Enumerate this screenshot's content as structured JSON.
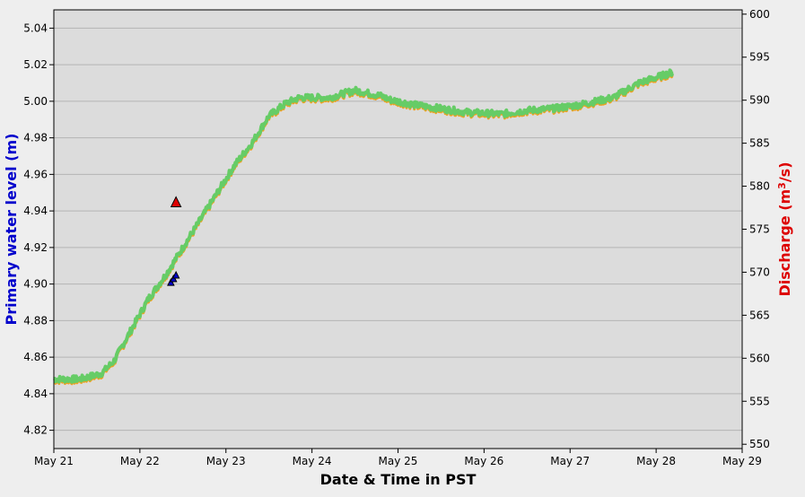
{
  "chart_data": {
    "type": "line",
    "xlabel": "Date & Time in PST",
    "ylabel_left": "Primary water level (m)",
    "ylabel_right_main": "Discharge (m",
    "ylabel_right_sup": "3",
    "ylabel_right_tail": "/s)",
    "ylim_left": [
      4.81,
      5.05
    ],
    "ylim_right": [
      549.5,
      600.5
    ],
    "xlim": [
      "May 21",
      "May 29"
    ],
    "x_ticks": [
      "May 21",
      "May 22",
      "May 23",
      "May 24",
      "May 25",
      "May 26",
      "May 27",
      "May 28",
      "May 29"
    ],
    "y_ticks_left": [
      "4.82",
      "4.84",
      "4.86",
      "4.88",
      "4.90",
      "4.92",
      "4.94",
      "4.96",
      "4.98",
      "5.00",
      "5.02",
      "5.04"
    ],
    "y_ticks_right": [
      "550",
      "555",
      "560",
      "565",
      "570",
      "575",
      "580",
      "585",
      "590",
      "595",
      "600"
    ],
    "grid": true,
    "colors": {
      "plot_bg": "#dcdcdc",
      "water_level": "#66cc66",
      "discharge": "#f0a020",
      "left_axis_title": "#0000cc",
      "right_axis_title": "#dd0000",
      "discharge_marker": "#dd0000",
      "level_marker": "#0000cc"
    },
    "series": [
      {
        "axis": "left",
        "day_offsets": [
          0.0,
          0.3,
          0.55,
          0.7,
          0.9,
          1.1,
          1.3,
          1.5,
          1.7,
          1.9,
          2.1,
          2.3,
          2.5,
          2.7,
          2.85,
          3.0,
          3.2,
          3.5,
          3.8,
          3.9,
          4.2,
          4.5,
          4.8,
          5.2,
          5.5,
          5.8,
          6.1,
          6.5,
          6.8,
          7.2
        ],
        "values": [
          4.848,
          4.848,
          4.851,
          4.858,
          4.875,
          4.892,
          4.905,
          4.92,
          4.935,
          4.95,
          4.965,
          4.977,
          4.992,
          4.999,
          5.002,
          5.002,
          5.002,
          5.006,
          5.003,
          5.001,
          4.998,
          4.996,
          4.994,
          4.993,
          4.995,
          4.996,
          4.998,
          5.002,
          5.01,
          5.016
        ]
      }
    ],
    "markers": [
      {
        "label": "discharge measurement",
        "axis": "left",
        "day_offset": 1.42,
        "value": 4.945,
        "color": "#dd0000"
      },
      {
        "label": "level measurement",
        "axis": "left",
        "day_offset": 1.36,
        "value": 4.901,
        "color": "#0000cc"
      },
      {
        "label": "level measurement",
        "axis": "left",
        "day_offset": 1.39,
        "value": 4.903,
        "color": "#0000cc"
      },
      {
        "label": "level measurement",
        "axis": "left",
        "day_offset": 1.42,
        "value": 4.905,
        "color": "#0000cc"
      }
    ]
  }
}
